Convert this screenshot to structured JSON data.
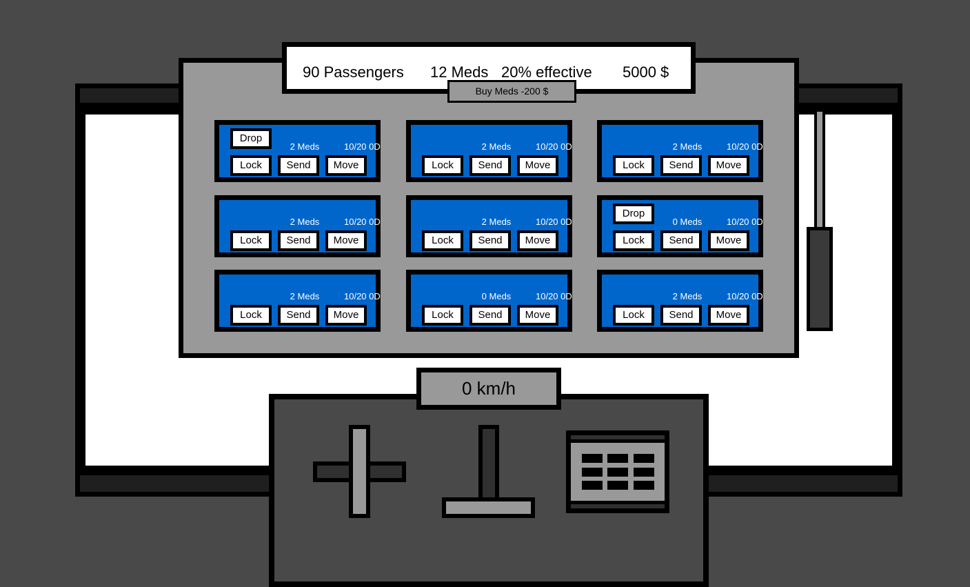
{
  "stats": {
    "passengers": "90 Passengers",
    "meds": "12 Meds",
    "effective": "20% effective",
    "money": "5000 $"
  },
  "buy_meds_label": "Buy Meds -200 $",
  "speed": "0 km/h",
  "cars": [
    {
      "meds": "2 Meds",
      "status": "10/20 0D",
      "has_drop": true
    },
    {
      "meds": "2 Meds",
      "status": "10/20 0D",
      "has_drop": false
    },
    {
      "meds": "2 Meds",
      "status": "10/20 0D",
      "has_drop": false
    },
    {
      "meds": "2 Meds",
      "status": "10/20 0D",
      "has_drop": false
    },
    {
      "meds": "2 Meds",
      "status": "10/20 0D",
      "has_drop": false
    },
    {
      "meds": "0 Meds",
      "status": "10/20 0D",
      "has_drop": true
    },
    {
      "meds": "2 Meds",
      "status": "10/20 0D",
      "has_drop": false
    },
    {
      "meds": "0 Meds",
      "status": "10/20 0D",
      "has_drop": false
    },
    {
      "meds": "2 Meds",
      "status": "10/20 0D",
      "has_drop": false
    }
  ],
  "car_buttons": {
    "lock": "Lock",
    "send": "Send",
    "move": "Move",
    "drop": "Drop"
  },
  "colors": {
    "background": "#494949",
    "panel": "#999999",
    "car": "#0066cc",
    "window": "#ffffff"
  }
}
